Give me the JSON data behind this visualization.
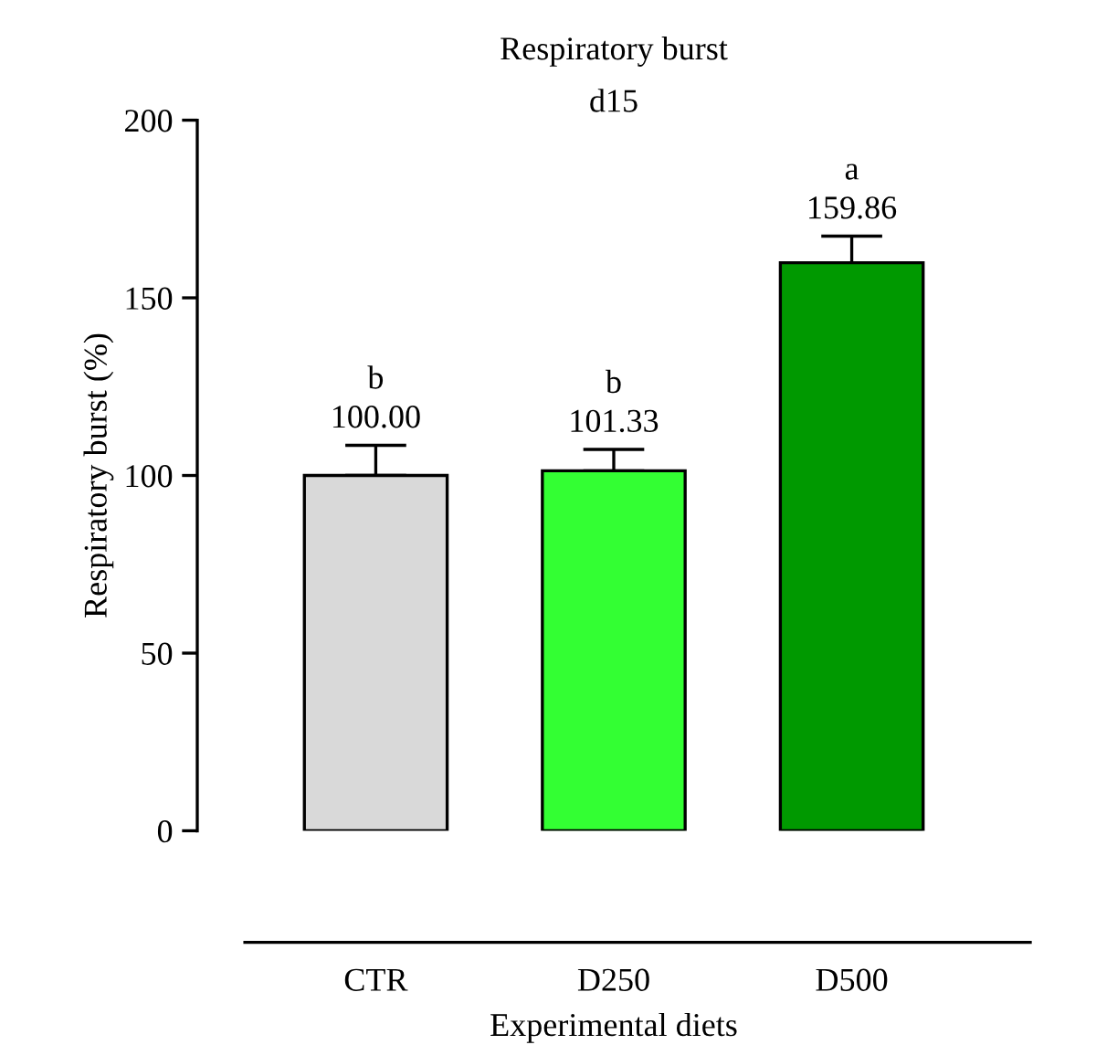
{
  "chart_data": {
    "type": "bar",
    "title": "Respiratory burst",
    "subtitle": "d15",
    "xlabel": "Experimental diets",
    "ylabel": "Respiratory burst (%)",
    "categories": [
      "CTR",
      "D250",
      "D500"
    ],
    "values": [
      100.0,
      101.33,
      159.86
    ],
    "colors": [
      "#d9d9d9",
      "#33ff33",
      "#009900"
    ],
    "errors": [
      8.5,
      6,
      7.5
    ],
    "value_labels": [
      "100.00",
      "101.33",
      "159.86"
    ],
    "annotations": [
      "b",
      "b",
      "a"
    ],
    "ylim": [
      0,
      200
    ],
    "yticks": [
      0,
      50,
      100,
      150,
      200
    ],
    "grid": false,
    "legend": false
  }
}
